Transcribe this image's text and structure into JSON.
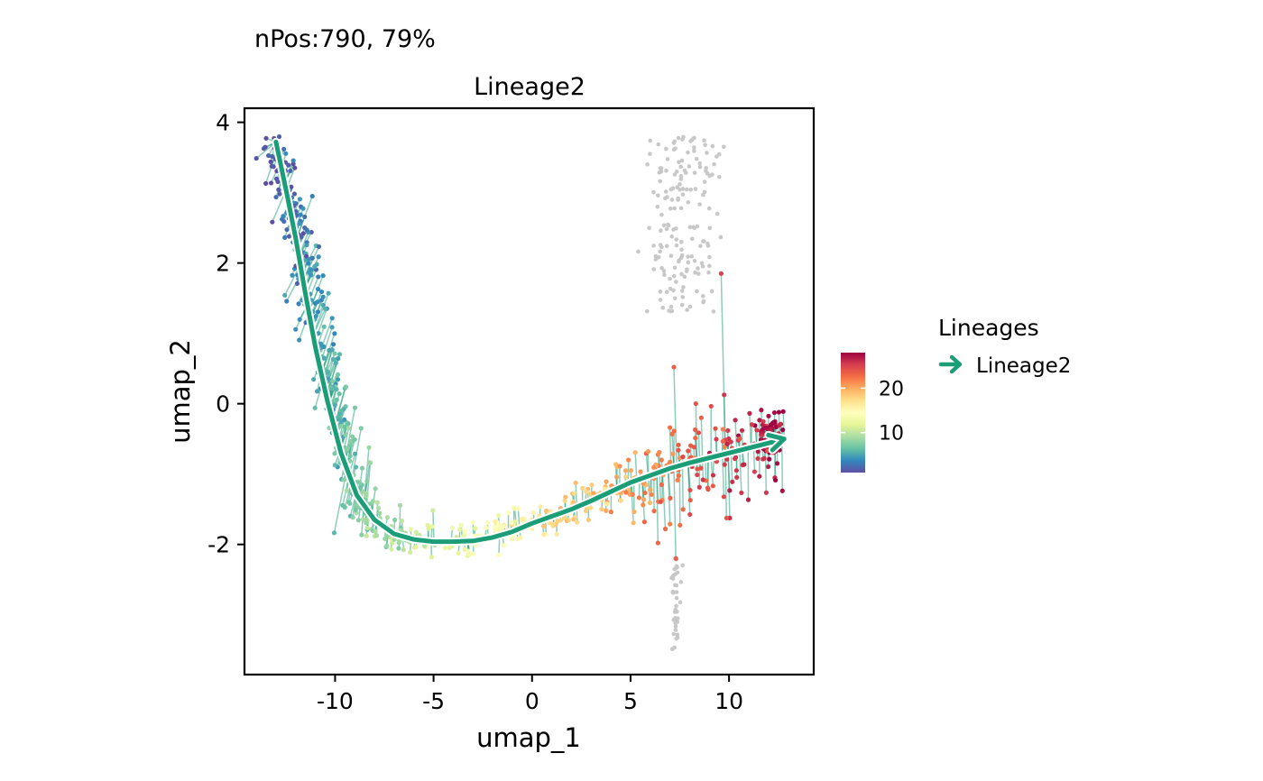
{
  "subtitle": "nPos:790, 79%",
  "chart_data": {
    "type": "scatter",
    "title": "Lineage2",
    "xlabel": "umap_1",
    "ylabel": "umap_2",
    "xlim": [
      -14.6,
      14.3
    ],
    "ylim": [
      -3.85,
      4.2
    ],
    "x_ticks": [
      {
        "value": -10,
        "label": "-10"
      },
      {
        "value": -5,
        "label": "-5"
      },
      {
        "value": 0,
        "label": "0"
      },
      {
        "value": 5,
        "label": "5"
      },
      {
        "value": 10,
        "label": "10"
      }
    ],
    "y_ticks": [
      {
        "value": -2,
        "label": "-2"
      },
      {
        "value": 0,
        "label": "0"
      },
      {
        "value": 2,
        "label": "2"
      },
      {
        "value": 4,
        "label": "4"
      }
    ],
    "lineage_curve": {
      "name": "Lineage2",
      "color": "#1b9e77",
      "points": [
        [
          -13,
          3.72
        ],
        [
          -12.5,
          3.05
        ],
        [
          -12.0,
          2.35
        ],
        [
          -11.5,
          1.55
        ],
        [
          -11.0,
          0.8
        ],
        [
          -10.4,
          0.05
        ],
        [
          -9.7,
          -0.7
        ],
        [
          -8.9,
          -1.3
        ],
        [
          -8.0,
          -1.65
        ],
        [
          -7.0,
          -1.85
        ],
        [
          -6.0,
          -1.93
        ],
        [
          -5.0,
          -1.96
        ],
        [
          -4.0,
          -1.96
        ],
        [
          -3.0,
          -1.95
        ],
        [
          -2.0,
          -1.9
        ],
        [
          -1.0,
          -1.82
        ],
        [
          0.0,
          -1.7
        ],
        [
          1.0,
          -1.6
        ],
        [
          2.0,
          -1.5
        ],
        [
          3.0,
          -1.38
        ],
        [
          4.0,
          -1.25
        ],
        [
          5.0,
          -1.12
        ],
        [
          6.0,
          -1.02
        ],
        [
          7.0,
          -0.92
        ],
        [
          8.0,
          -0.84
        ],
        [
          9.0,
          -0.77
        ],
        [
          10.0,
          -0.7
        ],
        [
          11.0,
          -0.63
        ],
        [
          12.0,
          -0.56
        ],
        [
          12.8,
          -0.5
        ]
      ]
    },
    "colorbar": {
      "palette": "Spectral (reversed)",
      "colors": [
        "#5e4fa2",
        "#3288bd",
        "#66c2a5",
        "#abdda4",
        "#e6f598",
        "#ffffbf",
        "#fee08b",
        "#fdae61",
        "#f46d43",
        "#d53e4f",
        "#9e0142"
      ],
      "range": [
        1,
        28
      ],
      "ticks": [
        10,
        20
      ],
      "labels": [
        "10",
        "20"
      ]
    },
    "negative_cells_color": "#c8c8c8",
    "legend": {
      "title": "Lineages",
      "entries": [
        {
          "label": "Lineage2",
          "color": "#1b9e77"
        }
      ],
      "placement": "right"
    },
    "grid": false
  }
}
